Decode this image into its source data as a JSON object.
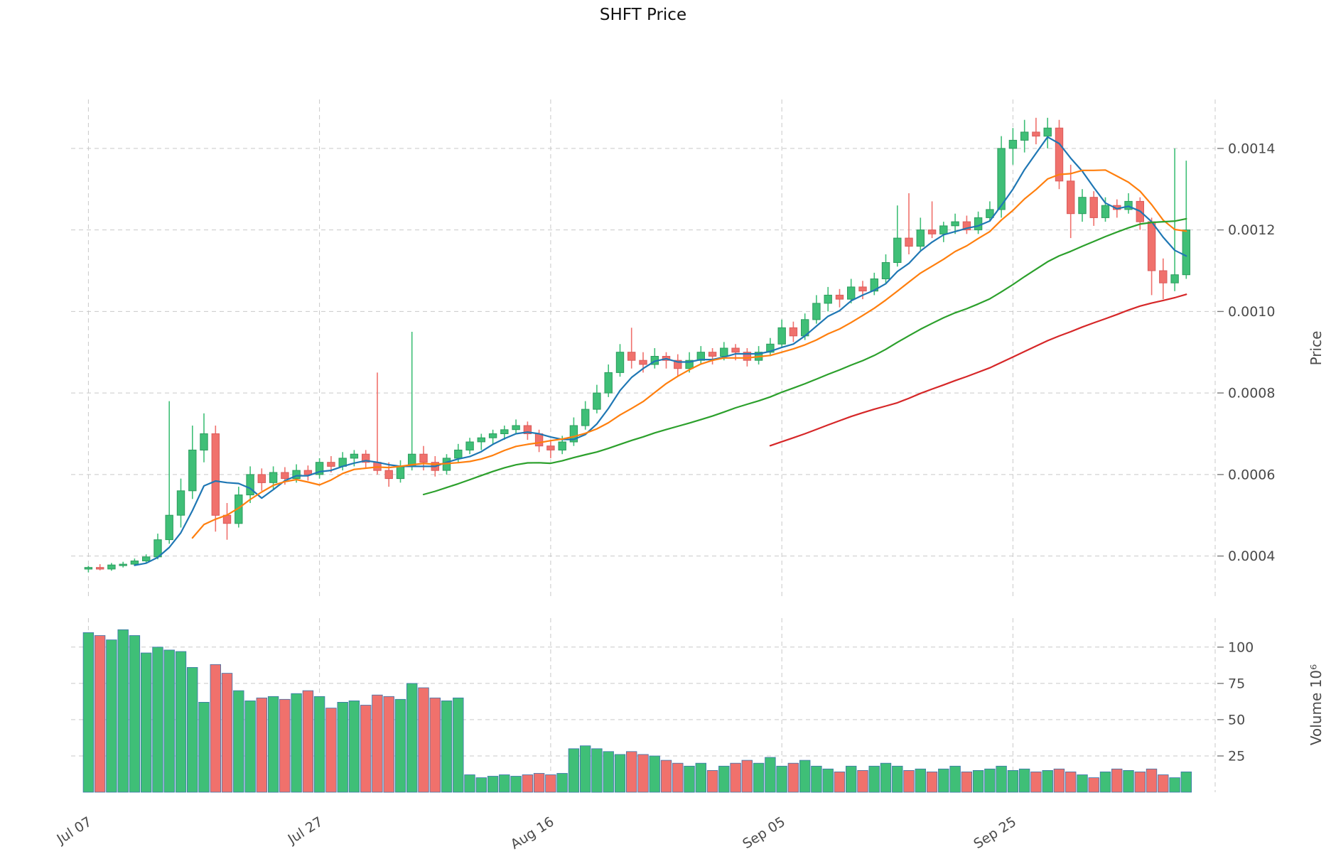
{
  "title": "SHFT Price",
  "axes": {
    "price_label": "Price",
    "volume_label": "Volume  10⁶",
    "price_ticks": [
      0.0004,
      0.0006,
      0.0008,
      0.001,
      0.0012,
      0.0014
    ],
    "volume_ticks": [
      25,
      50,
      75,
      100
    ],
    "x_tick_labels": [
      "Jul 07",
      "Jul 27",
      "Aug 16",
      "Sep 05",
      "Sep 25"
    ],
    "x_tick_indices": [
      0,
      20,
      40,
      60,
      80
    ]
  },
  "colors": {
    "up": "#3FBF77",
    "up_edge": "#2C9C5E",
    "down": "#F0716C",
    "down_edge": "#D95B5B",
    "volume_edge": "#3B74AD",
    "grid": "#C9C9C9",
    "tick": "#777777",
    "text": "#4A4A4A"
  },
  "chart_data": {
    "type": "candlestick_with_volume",
    "title": "SHFT Price",
    "ylabel": "Price",
    "ylabel_lower": "Volume 10⁶",
    "ylim_price": [
      0.0003,
      0.00152
    ],
    "ylim_volume": [
      0,
      120
    ],
    "dates": [
      "Jul 07",
      "Jul 08",
      "Jul 09",
      "Jul 10",
      "Jul 11",
      "Jul 12",
      "Jul 13",
      "Jul 14",
      "Jul 15",
      "Jul 16",
      "Jul 17",
      "Jul 18",
      "Jul 19",
      "Jul 20",
      "Jul 21",
      "Jul 22",
      "Jul 23",
      "Jul 24",
      "Jul 25",
      "Jul 26",
      "Jul 27",
      "Jul 28",
      "Jul 29",
      "Jul 30",
      "Jul 31",
      "Aug 01",
      "Aug 02",
      "Aug 03",
      "Aug 04",
      "Aug 05",
      "Aug 06",
      "Aug 07",
      "Aug 08",
      "Aug 09",
      "Aug 10",
      "Aug 11",
      "Aug 12",
      "Aug 13",
      "Aug 14",
      "Aug 15",
      "Aug 16",
      "Aug 17",
      "Aug 18",
      "Aug 19",
      "Aug 20",
      "Aug 21",
      "Aug 22",
      "Aug 23",
      "Aug 24",
      "Aug 25",
      "Aug 26",
      "Aug 27",
      "Aug 28",
      "Aug 29",
      "Aug 30",
      "Aug 31",
      "Sep 01",
      "Sep 02",
      "Sep 03",
      "Sep 04",
      "Sep 05",
      "Sep 06",
      "Sep 07",
      "Sep 08",
      "Sep 09",
      "Sep 10",
      "Sep 11",
      "Sep 12",
      "Sep 13",
      "Sep 14",
      "Sep 15",
      "Sep 16",
      "Sep 17",
      "Sep 18",
      "Sep 19",
      "Sep 20",
      "Sep 21",
      "Sep 22",
      "Sep 23",
      "Sep 24",
      "Sep 25",
      "Sep 26",
      "Sep 27",
      "Sep 28",
      "Sep 29",
      "Sep 30",
      "Oct 01",
      "Oct 02",
      "Oct 03",
      "Oct 04",
      "Oct 05",
      "Oct 06",
      "Oct 07",
      "Oct 08",
      "Oct 09",
      "Oct 10"
    ],
    "open": [
      0.000368,
      0.000372,
      0.000368,
      0.000378,
      0.00038,
      0.000388,
      0.000398,
      0.00044,
      0.0005,
      0.00056,
      0.00066,
      0.0007,
      0.0005,
      0.00048,
      0.00055,
      0.0006,
      0.00058,
      0.000605,
      0.00059,
      0.00061,
      0.0006,
      0.00063,
      0.00062,
      0.00064,
      0.00065,
      0.00063,
      0.00061,
      0.00059,
      0.00062,
      0.00065,
      0.00063,
      0.00061,
      0.00064,
      0.00066,
      0.00068,
      0.00069,
      0.0007,
      0.00071,
      0.00072,
      0.0007,
      0.00067,
      0.00066,
      0.00068,
      0.00072,
      0.00076,
      0.0008,
      0.00085,
      0.0009,
      0.00088,
      0.00087,
      0.00089,
      0.00088,
      0.00086,
      0.00088,
      0.0009,
      0.00089,
      0.00091,
      0.0009,
      0.00088,
      0.0009,
      0.00092,
      0.00096,
      0.00094,
      0.00098,
      0.00102,
      0.00104,
      0.00103,
      0.00106,
      0.00105,
      0.00108,
      0.00112,
      0.00118,
      0.00116,
      0.0012,
      0.00119,
      0.00121,
      0.00122,
      0.0012,
      0.00123,
      0.00125,
      0.0014,
      0.00142,
      0.00144,
      0.00143,
      0.00145,
      0.00132,
      0.00124,
      0.00128,
      0.00123,
      0.00126,
      0.00125,
      0.00127,
      0.00122,
      0.0011,
      0.00107,
      0.00109
    ],
    "high": [
      0.000376,
      0.00038,
      0.000383,
      0.000386,
      0.000394,
      0.000404,
      0.000455,
      0.00078,
      0.00059,
      0.00072,
      0.00075,
      0.00072,
      0.00053,
      0.00057,
      0.00062,
      0.000615,
      0.00062,
      0.000618,
      0.000625,
      0.000622,
      0.00064,
      0.000645,
      0.000655,
      0.00066,
      0.00066,
      0.00085,
      0.00063,
      0.000635,
      0.00095,
      0.00067,
      0.000645,
      0.00065,
      0.000675,
      0.00069,
      0.0007,
      0.00071,
      0.00072,
      0.000735,
      0.00073,
      0.00071,
      0.000685,
      0.000695,
      0.00074,
      0.00078,
      0.00082,
      0.00087,
      0.00092,
      0.00096,
      0.0009,
      0.00091,
      0.0009,
      0.000895,
      0.0009,
      0.000915,
      0.00091,
      0.000925,
      0.00092,
      0.00091,
      0.000915,
      0.000935,
      0.00098,
      0.000975,
      0.000995,
      0.00104,
      0.00106,
      0.001055,
      0.00108,
      0.001075,
      0.001095,
      0.00114,
      0.00126,
      0.00129,
      0.00123,
      0.00127,
      0.00122,
      0.00124,
      0.001235,
      0.001245,
      0.00127,
      0.00143,
      0.00145,
      0.00147,
      0.001475,
      0.001475,
      0.00147,
      0.00136,
      0.0013,
      0.001295,
      0.00128,
      0.001275,
      0.00129,
      0.00128,
      0.00123,
      0.00113,
      0.0014,
      0.00137
    ],
    "low": [
      0.00036,
      0.000365,
      0.000364,
      0.000372,
      0.000376,
      0.000382,
      0.000392,
      0.00043,
      0.00047,
      0.00054,
      0.00063,
      0.00046,
      0.00044,
      0.00047,
      0.00053,
      0.00056,
      0.000565,
      0.000575,
      0.00058,
      0.000585,
      0.00059,
      0.000605,
      0.00061,
      0.00062,
      0.000615,
      0.0006,
      0.00057,
      0.00058,
      0.00061,
      0.00061,
      0.000595,
      0.0006,
      0.00063,
      0.00065,
      0.00066,
      0.000675,
      0.000685,
      0.0007,
      0.000685,
      0.000655,
      0.00064,
      0.00065,
      0.00067,
      0.00071,
      0.00075,
      0.00079,
      0.00084,
      0.00086,
      0.00085,
      0.00086,
      0.00086,
      0.00084,
      0.00085,
      0.00087,
      0.00087,
      0.00088,
      0.00088,
      0.000865,
      0.00087,
      0.00089,
      0.00091,
      0.000925,
      0.00093,
      0.00097,
      0.001,
      0.00101,
      0.00102,
      0.00103,
      0.00104,
      0.00107,
      0.00111,
      0.00114,
      0.00115,
      0.00118,
      0.00117,
      0.00119,
      0.00119,
      0.00119,
      0.00122,
      0.00123,
      0.00136,
      0.00139,
      0.00141,
      0.0014,
      0.0013,
      0.00118,
      0.00122,
      0.00121,
      0.00122,
      0.00123,
      0.00124,
      0.0012,
      0.00104,
      0.00103,
      0.00105,
      0.00108
    ],
    "close": [
      0.000372,
      0.000368,
      0.000378,
      0.00038,
      0.000388,
      0.000398,
      0.00044,
      0.0005,
      0.00056,
      0.00066,
      0.0007,
      0.0005,
      0.00048,
      0.00055,
      0.0006,
      0.00058,
      0.000605,
      0.00059,
      0.00061,
      0.0006,
      0.00063,
      0.00062,
      0.00064,
      0.00065,
      0.00063,
      0.00061,
      0.00059,
      0.00062,
      0.00065,
      0.00063,
      0.00061,
      0.00064,
      0.00066,
      0.00068,
      0.00069,
      0.0007,
      0.00071,
      0.00072,
      0.0007,
      0.00067,
      0.00066,
      0.00068,
      0.00072,
      0.00076,
      0.0008,
      0.00085,
      0.0009,
      0.00088,
      0.00087,
      0.00089,
      0.00088,
      0.00086,
      0.00088,
      0.0009,
      0.00089,
      0.00091,
      0.0009,
      0.00088,
      0.0009,
      0.00092,
      0.00096,
      0.00094,
      0.00098,
      0.00102,
      0.00104,
      0.00103,
      0.00106,
      0.00105,
      0.00108,
      0.00112,
      0.00118,
      0.00116,
      0.0012,
      0.00119,
      0.00121,
      0.00122,
      0.0012,
      0.00123,
      0.00125,
      0.0014,
      0.00142,
      0.00144,
      0.00143,
      0.00145,
      0.00132,
      0.00124,
      0.00128,
      0.00123,
      0.00126,
      0.00125,
      0.00127,
      0.00122,
      0.0011,
      0.00107,
      0.00109,
      0.0012
    ],
    "volume_millions": [
      110,
      108,
      105,
      112,
      108,
      96,
      100,
      98,
      97,
      86,
      62,
      88,
      82,
      70,
      63,
      65,
      66,
      64,
      68,
      70,
      66,
      58,
      62,
      63,
      60,
      67,
      66,
      64,
      75,
      72,
      65,
      63,
      65,
      12,
      10,
      11,
      12,
      11,
      12,
      13,
      12,
      13,
      30,
      32,
      30,
      28,
      26,
      28,
      26,
      25,
      22,
      20,
      18,
      20,
      15,
      18,
      20,
      22,
      20,
      24,
      18,
      20,
      22,
      18,
      16,
      14,
      18,
      15,
      18,
      20,
      18,
      15,
      16,
      14,
      16,
      18,
      14,
      15,
      16,
      18,
      15,
      16,
      14,
      15,
      16,
      14,
      12,
      10,
      14,
      16,
      15,
      14,
      16,
      12,
      10,
      14
    ],
    "moving_averages": [
      {
        "window": 5,
        "color": "#1f77b4"
      },
      {
        "window": 10,
        "color": "#ff7f0e"
      },
      {
        "window": 30,
        "color": "#2ca02c"
      },
      {
        "window": 60,
        "color": "#d62728"
      }
    ],
    "legend": "off",
    "grid": "dashed"
  }
}
